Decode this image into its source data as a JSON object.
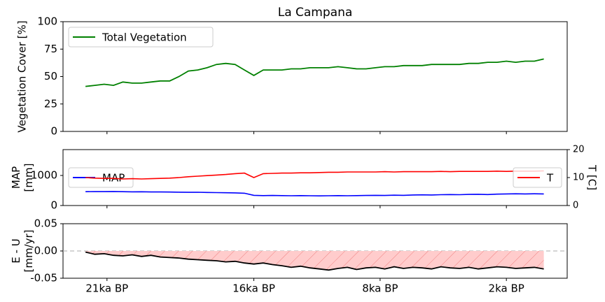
{
  "chart_data": [
    {
      "type": "line",
      "title": "La Campana",
      "ylabel": "Vegetation Cover [%]",
      "x": [
        0,
        1,
        2,
        3,
        4,
        5,
        6,
        7,
        8,
        9,
        10,
        11,
        12,
        13,
        14,
        15,
        16,
        17,
        18,
        19,
        20,
        21,
        22,
        23,
        24,
        25,
        26,
        27,
        28,
        29,
        30,
        31,
        32,
        33,
        34,
        35,
        36,
        37,
        38,
        39,
        40,
        41,
        42,
        43,
        44,
        45,
        46,
        47,
        48,
        49
      ],
      "xlim": [
        -2.4,
        51.5
      ],
      "ylim": [
        0,
        100
      ],
      "yticks": [
        0,
        25,
        50,
        75,
        100
      ],
      "legend": "upper left",
      "series": [
        {
          "name": "Total Vegetation",
          "color": "#008000",
          "values": [
            41,
            42,
            43,
            42,
            45,
            44,
            44,
            45,
            46,
            46,
            50,
            55,
            56,
            58,
            61,
            62,
            61,
            56,
            51,
            56,
            56,
            56,
            57,
            57,
            58,
            58,
            58,
            59,
            58,
            57,
            57,
            58,
            59,
            59,
            60,
            60,
            60,
            61,
            61,
            61,
            61,
            62,
            62,
            63,
            63,
            64,
            63,
            64,
            64,
            66
          ]
        }
      ]
    },
    {
      "type": "line",
      "ylabel": "MAP\n[mm]",
      "y2label": "T [C]",
      "x": [
        0,
        1,
        2,
        3,
        4,
        5,
        6,
        7,
        8,
        9,
        10,
        11,
        12,
        13,
        14,
        15,
        16,
        17,
        18,
        19,
        20,
        21,
        22,
        23,
        24,
        25,
        26,
        27,
        28,
        29,
        30,
        31,
        32,
        33,
        34,
        35,
        36,
        37,
        38,
        39,
        40,
        41,
        42,
        43,
        44,
        45,
        46,
        47,
        48,
        49
      ],
      "xlim": [
        -2.4,
        51.5
      ],
      "ylim": [
        0,
        1860
      ],
      "yticks": [
        0,
        1000
      ],
      "y2lim": [
        0,
        20
      ],
      "y2ticks": [
        0,
        10,
        20
      ],
      "series": [
        {
          "name": "MAP",
          "color": "#0000ff",
          "legend": "center left",
          "values": [
            460,
            465,
            462,
            468,
            460,
            455,
            458,
            452,
            450,
            448,
            445,
            440,
            442,
            435,
            430,
            425,
            420,
            410,
            340,
            330,
            335,
            330,
            325,
            330,
            325,
            320,
            325,
            330,
            325,
            330,
            335,
            340,
            335,
            345,
            340,
            350,
            355,
            350,
            360,
            365,
            360,
            370,
            375,
            365,
            380,
            385,
            390,
            385,
            390,
            385
          ]
        },
        {
          "name": "T",
          "color": "#ff0000",
          "axis": "y2",
          "legend": "center right",
          "values": [
            10,
            9.8,
            9.7,
            9.7,
            9.5,
            9.6,
            9.5,
            9.6,
            9.7,
            9.8,
            10,
            10.3,
            10.5,
            10.7,
            10.9,
            11.1,
            11.4,
            11.6,
            10,
            11.4,
            11.5,
            11.6,
            11.6,
            11.7,
            11.7,
            11.8,
            11.9,
            11.9,
            12,
            12,
            12,
            12,
            12.1,
            12,
            12.1,
            12.1,
            12.1,
            12.1,
            12.2,
            12.1,
            12.2,
            12.2,
            12.2,
            12.2,
            12.3,
            12.2,
            12.3,
            12.3,
            12.3,
            12.4
          ]
        }
      ]
    },
    {
      "type": "area",
      "ylabel": "E - U\n[mm/yr]",
      "x": [
        0,
        1,
        2,
        3,
        4,
        5,
        6,
        7,
        8,
        9,
        10,
        11,
        12,
        13,
        14,
        15,
        16,
        17,
        18,
        19,
        20,
        21,
        22,
        23,
        24,
        25,
        26,
        27,
        28,
        29,
        30,
        31,
        32,
        33,
        34,
        35,
        36,
        37,
        38,
        39,
        40,
        41,
        42,
        43,
        44,
        45,
        46,
        47,
        48,
        49
      ],
      "xlim": [
        -2.4,
        51.5
      ],
      "ylim": [
        -0.05,
        0.05
      ],
      "yticks": [
        -0.05,
        {
          "value": 0,
          "label": "0.00"
        },
        0.05
      ],
      "xticks": [
        {
          "value": 2.3,
          "label": "21ka BP"
        },
        {
          "value": 18,
          "label": "16ka BP"
        },
        {
          "value": 31.5,
          "label": "8ka BP"
        },
        {
          "value": 45,
          "label": "2ka BP"
        }
      ],
      "series": [
        {
          "color": "#000000",
          "fill": "#ffcccc",
          "values": [
            -0.002,
            -0.006,
            -0.005,
            -0.008,
            -0.009,
            -0.007,
            -0.01,
            -0.008,
            -0.011,
            -0.012,
            -0.013,
            -0.015,
            -0.016,
            -0.017,
            -0.018,
            -0.02,
            -0.019,
            -0.022,
            -0.024,
            -0.022,
            -0.025,
            -0.027,
            -0.03,
            -0.028,
            -0.031,
            -0.033,
            -0.035,
            -0.032,
            -0.03,
            -0.034,
            -0.031,
            -0.03,
            -0.033,
            -0.029,
            -0.032,
            -0.03,
            -0.031,
            -0.033,
            -0.029,
            -0.031,
            -0.032,
            -0.03,
            -0.033,
            -0.031,
            -0.029,
            -0.03,
            -0.032,
            -0.031,
            -0.03,
            -0.033
          ]
        }
      ]
    }
  ]
}
